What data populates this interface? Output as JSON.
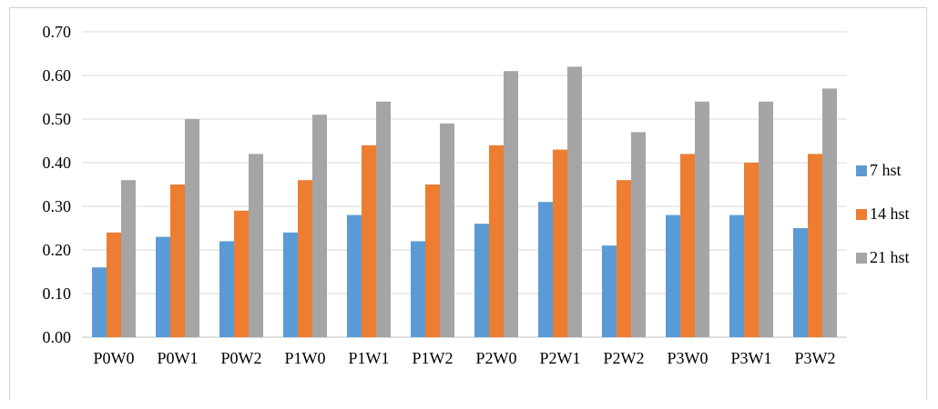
{
  "chart_data": {
    "type": "bar",
    "categories": [
      "P0W0",
      "P0W1",
      "P0W2",
      "P1W0",
      "P1W1",
      "P1W2",
      "P2W0",
      "P2W1",
      "P2W2",
      "P3W0",
      "P3W1",
      "P3W2"
    ],
    "series": [
      {
        "name": "7 hst",
        "color": "#5b9bd5",
        "values": [
          0.16,
          0.23,
          0.22,
          0.24,
          0.28,
          0.22,
          0.26,
          0.31,
          0.21,
          0.28,
          0.28,
          0.25
        ]
      },
      {
        "name": "14 hst",
        "color": "#ed7d31",
        "values": [
          0.24,
          0.35,
          0.29,
          0.36,
          0.44,
          0.35,
          0.44,
          0.43,
          0.36,
          0.42,
          0.4,
          0.42
        ]
      },
      {
        "name": "21 hst",
        "color": "#a5a5a5",
        "values": [
          0.36,
          0.5,
          0.42,
          0.51,
          0.54,
          0.49,
          0.61,
          0.62,
          0.47,
          0.54,
          0.54,
          0.57
        ]
      }
    ],
    "yticks": [
      "0.00",
      "0.10",
      "0.20",
      "0.30",
      "0.40",
      "0.50",
      "0.60",
      "0.70"
    ],
    "ylim": [
      0,
      0.7
    ],
    "grid": true,
    "legend_position": "right",
    "title": "",
    "xlabel": "",
    "ylabel": ""
  }
}
